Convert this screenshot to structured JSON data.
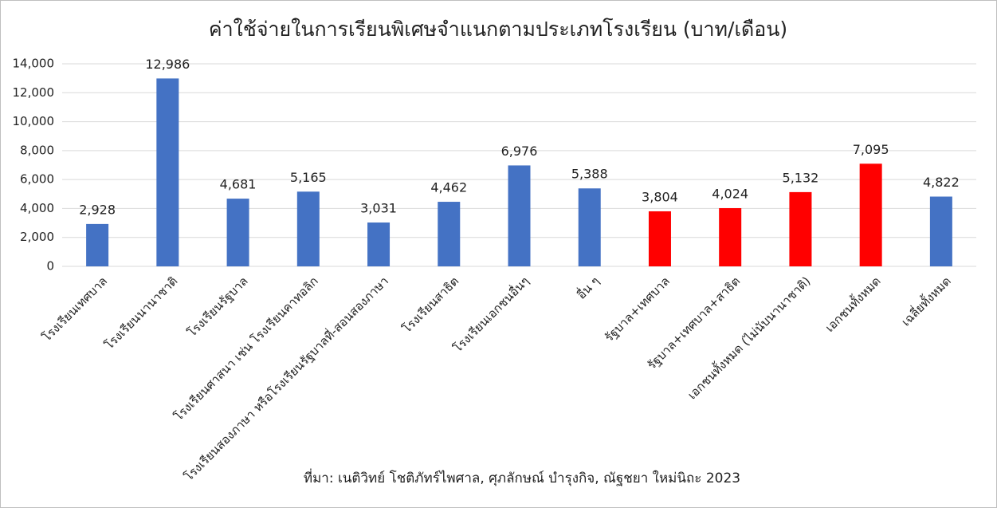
{
  "chart_data": {
    "type": "bar",
    "title": "ค่าใช้จ่ายในการเรียนพิเศษจำแนกตามประเภทโรงเรียน (บาท/เดือน)",
    "source": "ที่มา: เนติวิทย์ โชติภัทร์ไพศาล, ศุภลักษณ์ บำรุงกิจ, ณัฐชยา ใหม่นิถะ 2023",
    "categories": [
      "โรงเรียนเทศบาล",
      "โรงเรียนนานาชาติ",
      "โรงเรียนรัฐบาล",
      "โรงเรียนศาสนา เช่น โรงเรียนคาทอลิก",
      "โรงเรียนสองภาษา หรือโรงเรียนรัฐบาลที่-สอนสองภาษา",
      "โรงเรียนสาธิต",
      "โรงเรียนเอกชนอื่นๆ",
      "อื่น ๆ",
      "รัฐบาล+เทศบาล",
      "รัฐบาล+เทศบาล+สาธิต",
      "เอกชนทั้งหมด (ไม่นับนานาชาติ)",
      "เอกชนทั้งหมด",
      "เฉลี่ยทั้งหมด"
    ],
    "values": [
      2928,
      12986,
      4681,
      5165,
      3031,
      4462,
      6976,
      5388,
      3804,
      4024,
      5132,
      7095,
      4822
    ],
    "value_labels": [
      "2,928",
      "12,986",
      "4,681",
      "5,165",
      "3,031",
      "4,462",
      "6,976",
      "5,388",
      "3,804",
      "4,024",
      "5,132",
      "7,095",
      "4,822"
    ],
    "colors": [
      "#4472c4",
      "#4472c4",
      "#4472c4",
      "#4472c4",
      "#4472c4",
      "#4472c4",
      "#4472c4",
      "#4472c4",
      "#ff0000",
      "#ff0000",
      "#ff0000",
      "#ff0000",
      "#4472c4"
    ],
    "ylim": [
      0,
      14000
    ],
    "yticks": [
      0,
      {
        "value": 2000,
        "label": "2,000"
      },
      {
        "value": 4000,
        "label": "4,000"
      },
      {
        "value": 6000,
        "label": "6,000"
      },
      {
        "value": 8000,
        "label": "8,000"
      },
      {
        "value": 10000,
        "label": "10,000"
      },
      {
        "value": 12000,
        "label": "12,000"
      },
      {
        "value": 14000,
        "label": "14,000"
      }
    ],
    "grid": true
  }
}
